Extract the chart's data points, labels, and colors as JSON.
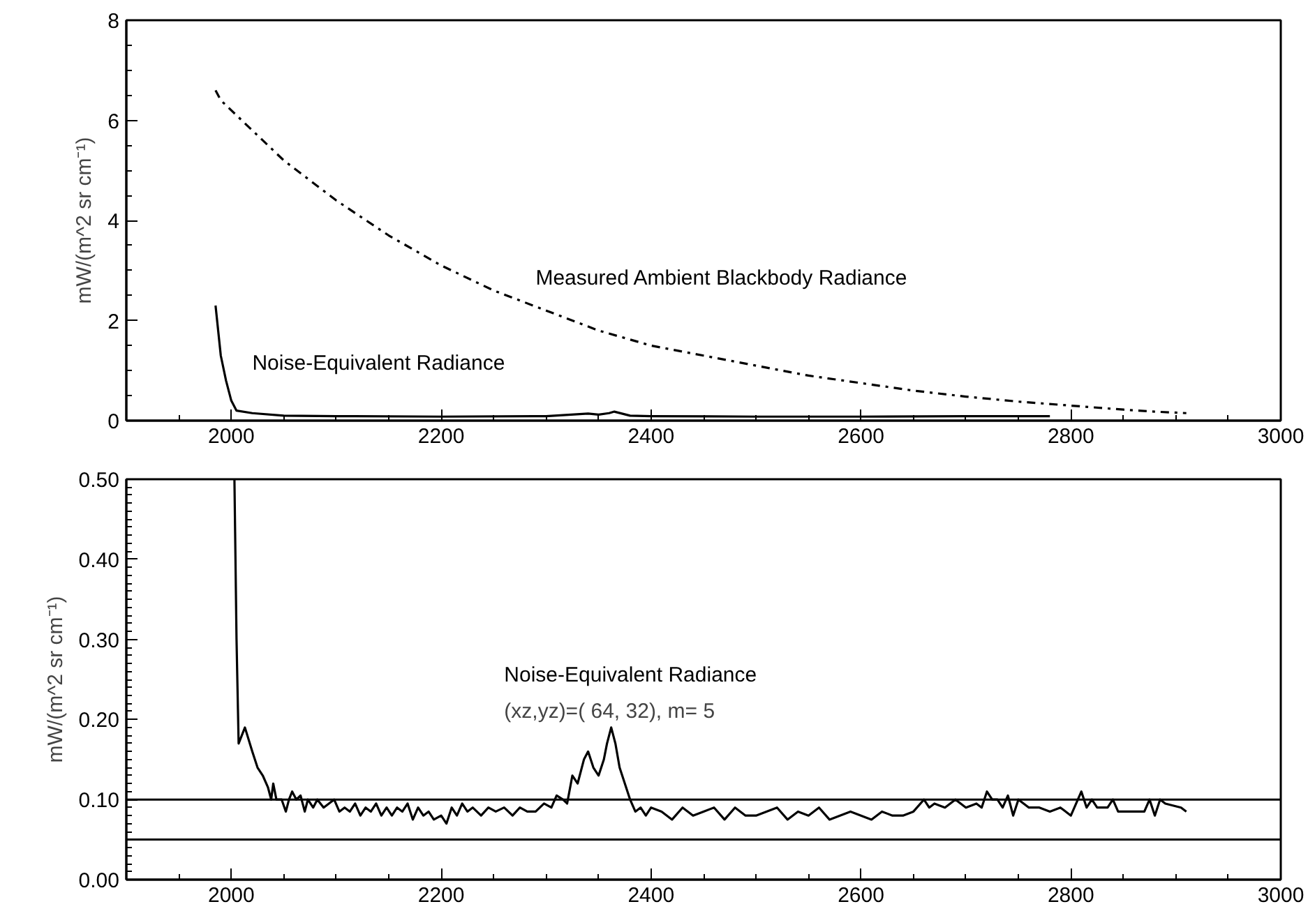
{
  "chart_data": [
    {
      "type": "line",
      "ylabel": "mW/(m^2 sr cm⁻¹)",
      "xlim": [
        1900,
        3000
      ],
      "xticks": [
        2000,
        2200,
        2400,
        2600,
        2800,
        3000
      ],
      "ylim": [
        0,
        8
      ],
      "yticks": [
        0,
        2,
        4,
        6,
        8
      ],
      "grid": false,
      "series": [
        {
          "name": "Measured Ambient Blackbody Radiance",
          "color": "#000000",
          "line_style": "dashdot",
          "x": [
            1985,
            1990,
            2000,
            2050,
            2100,
            2150,
            2200,
            2250,
            2300,
            2350,
            2400,
            2450,
            2500,
            2550,
            2600,
            2650,
            2700,
            2750,
            2800,
            2850,
            2880,
            2910
          ],
          "values": [
            6.6,
            6.4,
            6.2,
            5.2,
            4.4,
            3.7,
            3.1,
            2.6,
            2.2,
            1.8,
            1.5,
            1.3,
            1.1,
            0.9,
            0.75,
            0.6,
            0.48,
            0.38,
            0.3,
            0.22,
            0.18,
            0.15
          ]
        },
        {
          "name": "Noise-Equivalent Radiance",
          "color": "#000000",
          "line_style": "solid",
          "x": [
            1985,
            1990,
            1995,
            2000,
            2005,
            2020,
            2050,
            2100,
            2200,
            2300,
            2340,
            2350,
            2360,
            2365,
            2380,
            2400,
            2500,
            2600,
            2700,
            2780
          ],
          "values": [
            2.3,
            1.3,
            0.8,
            0.4,
            0.2,
            0.15,
            0.1,
            0.09,
            0.08,
            0.09,
            0.14,
            0.12,
            0.15,
            0.18,
            0.1,
            0.09,
            0.08,
            0.08,
            0.09,
            0.09
          ]
        }
      ]
    },
    {
      "type": "line",
      "ylabel": "mW/(m^2 sr cm⁻¹)",
      "xlim": [
        1900,
        3000
      ],
      "xticks": [
        2000,
        2200,
        2400,
        2600,
        2800,
        3000
      ],
      "ylim": [
        0,
        0.5
      ],
      "yticks": [
        {
          "value": 0,
          "label": "0.00"
        },
        {
          "value": 0.1,
          "label": "0.10"
        },
        {
          "value": 0.2,
          "label": "0.20"
        },
        {
          "value": 0.3,
          "label": "0.30"
        },
        {
          "value": 0.4,
          "label": "0.40"
        },
        {
          "value": 0.5,
          "label": "0.50"
        }
      ],
      "grid": false,
      "annotations": [
        "(xz,yz)=( 64, 32), m= 5"
      ],
      "ref_lines": [
        {
          "axis": "y",
          "value": 0.1,
          "label": null,
          "color": "#000000"
        },
        {
          "axis": "y",
          "value": 0.05,
          "label": null,
          "color": "#000000"
        }
      ],
      "series": [
        {
          "name": "Noise-Equivalent Radiance",
          "color": "#000000",
          "line_style": "solid",
          "x": [
            2003,
            2005,
            2007,
            2010,
            2013,
            2020,
            2025,
            2030,
            2035,
            2038,
            2040,
            2043,
            2048,
            2052,
            2055,
            2058,
            2062,
            2066,
            2070,
            2073,
            2078,
            2082,
            2088,
            2093,
            2098,
            2103,
            2108,
            2113,
            2118,
            2123,
            2128,
            2133,
            2138,
            2143,
            2148,
            2153,
            2158,
            2163,
            2168,
            2173,
            2178,
            2183,
            2188,
            2193,
            2200,
            2205,
            2210,
            2215,
            2220,
            2225,
            2230,
            2238,
            2245,
            2252,
            2260,
            2268,
            2275,
            2282,
            2290,
            2298,
            2305,
            2310,
            2316,
            2320,
            2325,
            2330,
            2336,
            2340,
            2345,
            2350,
            2355,
            2358,
            2362,
            2366,
            2370,
            2375,
            2380,
            2385,
            2390,
            2395,
            2400,
            2410,
            2420,
            2430,
            2440,
            2450,
            2460,
            2470,
            2480,
            2490,
            2500,
            2510,
            2520,
            2530,
            2540,
            2550,
            2560,
            2570,
            2580,
            2590,
            2600,
            2610,
            2620,
            2630,
            2640,
            2650,
            2660,
            2665,
            2670,
            2680,
            2690,
            2700,
            2710,
            2715,
            2720,
            2725,
            2730,
            2735,
            2740,
            2745,
            2750,
            2760,
            2770,
            2780,
            2790,
            2800,
            2810,
            2815,
            2820,
            2825,
            2835,
            2840,
            2845,
            2870,
            2875,
            2880,
            2885,
            2890,
            2905,
            2910
          ],
          "values": [
            0.5,
            0.3,
            0.17,
            0.18,
            0.19,
            0.16,
            0.14,
            0.13,
            0.115,
            0.1,
            0.12,
            0.1,
            0.1,
            0.085,
            0.1,
            0.11,
            0.1,
            0.105,
            0.085,
            0.1,
            0.09,
            0.1,
            0.09,
            0.095,
            0.1,
            0.085,
            0.09,
            0.085,
            0.095,
            0.08,
            0.09,
            0.085,
            0.095,
            0.08,
            0.09,
            0.08,
            0.09,
            0.085,
            0.095,
            0.075,
            0.09,
            0.08,
            0.085,
            0.075,
            0.08,
            0.07,
            0.09,
            0.08,
            0.095,
            0.085,
            0.09,
            0.08,
            0.09,
            0.085,
            0.09,
            0.08,
            0.09,
            0.085,
            0.085,
            0.095,
            0.09,
            0.105,
            0.1,
            0.095,
            0.13,
            0.12,
            0.15,
            0.16,
            0.14,
            0.13,
            0.15,
            0.17,
            0.19,
            0.17,
            0.14,
            0.12,
            0.1,
            0.085,
            0.09,
            0.08,
            0.09,
            0.085,
            0.075,
            0.09,
            0.08,
            0.085,
            0.09,
            0.075,
            0.09,
            0.08,
            0.08,
            0.085,
            0.09,
            0.075,
            0.085,
            0.08,
            0.09,
            0.075,
            0.08,
            0.085,
            0.08,
            0.075,
            0.085,
            0.08,
            0.08,
            0.085,
            0.1,
            0.09,
            0.095,
            0.09,
            0.1,
            0.09,
            0.095,
            0.09,
            0.11,
            0.1,
            0.1,
            0.09,
            0.105,
            0.08,
            0.1,
            0.09,
            0.09,
            0.085,
            0.09,
            0.08,
            0.11,
            0.09,
            0.1,
            0.09,
            0.09,
            0.1,
            0.085,
            0.085,
            0.1,
            0.08,
            0.1,
            0.095,
            0.09,
            0.085
          ]
        }
      ]
    }
  ]
}
